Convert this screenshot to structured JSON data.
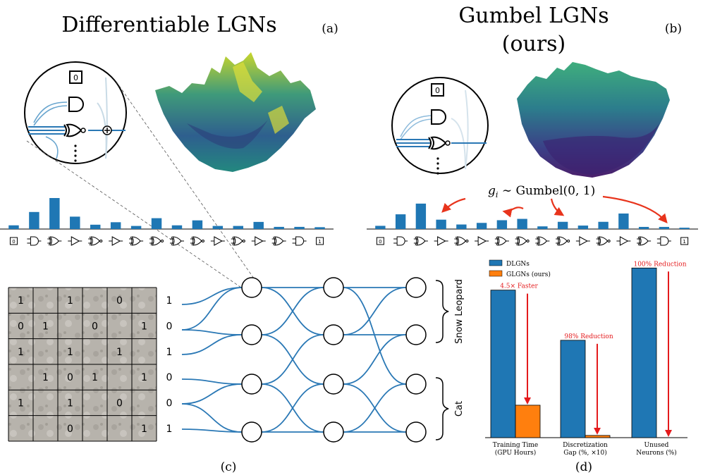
{
  "panels": {
    "a": {
      "title": "Differentiable LGNs",
      "letter": "(a)"
    },
    "b": {
      "title_line1": "Gumbel LGNs",
      "title_line2": "(ours)",
      "letter": "(b)"
    },
    "c": {
      "letter": "(c)"
    },
    "d": {
      "letter": "(d)"
    }
  },
  "gumbel_formula": {
    "g": "g",
    "sub": "i",
    "rest": " ∼ Gumbel(0, 1)"
  },
  "gate_labels": {
    "zero": "0",
    "one": "1"
  },
  "histogram_a": {
    "values": [
      0.12,
      0.55,
      1.0,
      0.4,
      0.14,
      0.22,
      0.1,
      0.35,
      0.12,
      0.28,
      0.1,
      0.1,
      0.23,
      0.07,
      0.07,
      0.06
    ]
  },
  "histogram_b": {
    "values": [
      0.12,
      0.55,
      0.95,
      0.35,
      0.17,
      0.23,
      0.33,
      0.38,
      0.1,
      0.27,
      0.13,
      0.27,
      0.58,
      0.08,
      0.08,
      0.05
    ]
  },
  "grid": {
    "cells": [
      [
        "1",
        "",
        "1",
        "",
        "0",
        ""
      ],
      [
        "0",
        "1",
        "",
        "0",
        "",
        "1"
      ],
      [
        "1",
        "",
        "1",
        "",
        "1",
        ""
      ],
      [
        "",
        "1",
        "0",
        "1",
        "",
        "1"
      ],
      [
        "1",
        "",
        "1",
        "",
        "0",
        ""
      ],
      [
        "",
        "",
        "0",
        "",
        "",
        "1"
      ]
    ],
    "outputs": [
      "1",
      "0",
      "1",
      "0",
      "0",
      "1"
    ]
  },
  "class_labels": {
    "top": "Snow Leopard",
    "bottom": "Cat"
  },
  "chart_data": {
    "type": "bar",
    "categories": [
      "Training Time\n(GPU Hours)",
      "Discretization\nGap (%, ×10)",
      "Unused\nNeurons (%)"
    ],
    "series": [
      {
        "name": "DLGNs",
        "values": [
          100,
          66,
          115
        ]
      },
      {
        "name": "GLGNs (ours)",
        "values": [
          22,
          1.5,
          0
        ]
      }
    ],
    "annotations": [
      "4.5× Faster",
      "98% Reduction",
      "100% Reduction"
    ],
    "ylim": [
      0,
      118
    ],
    "legend": "top-left",
    "colors": {
      "DLGNs": "#1f77b4",
      "GLGNs (ours)": "#ff7f0e",
      "arrow": "#e41a1c"
    }
  }
}
